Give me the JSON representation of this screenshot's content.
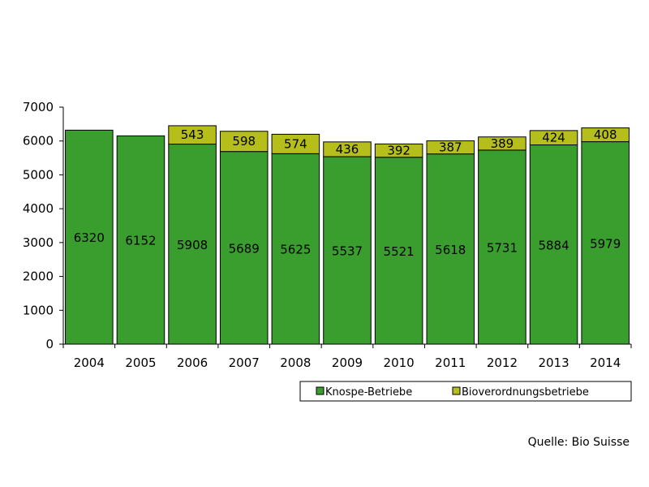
{
  "chart_data": {
    "type": "bar",
    "stacked": true,
    "categories": [
      "2004",
      "2005",
      "2006",
      "2007",
      "2008",
      "2009",
      "2010",
      "2011",
      "2012",
      "2013",
      "2014"
    ],
    "series": [
      {
        "name": "Knospe-Betriebe",
        "color": "#3a9e2f",
        "values": [
          6320,
          6152,
          5908,
          5689,
          5625,
          5537,
          5521,
          5618,
          5731,
          5884,
          5979
        ]
      },
      {
        "name": "Bioverordnungsbetriebe",
        "color": "#b6be1c",
        "values": [
          0,
          0,
          543,
          598,
          574,
          436,
          392,
          387,
          389,
          424,
          408
        ]
      }
    ],
    "data_labels": [
      [
        "6320",
        "6152",
        "5908",
        "5689",
        "5625",
        "5537",
        "5521",
        "5618",
        "5731",
        "5884",
        "5979"
      ],
      [
        "",
        "",
        "543",
        "598",
        "574",
        "436",
        "392",
        "387",
        "389",
        "424",
        "408"
      ]
    ],
    "yticks": [
      "0",
      "1000",
      "2000",
      "3000",
      "4000",
      "5000",
      "6000",
      "7000"
    ],
    "ylim": [
      0,
      7000
    ],
    "grid": false,
    "legend_position": "bottom-right"
  },
  "source": "Quelle: Bio Suisse"
}
